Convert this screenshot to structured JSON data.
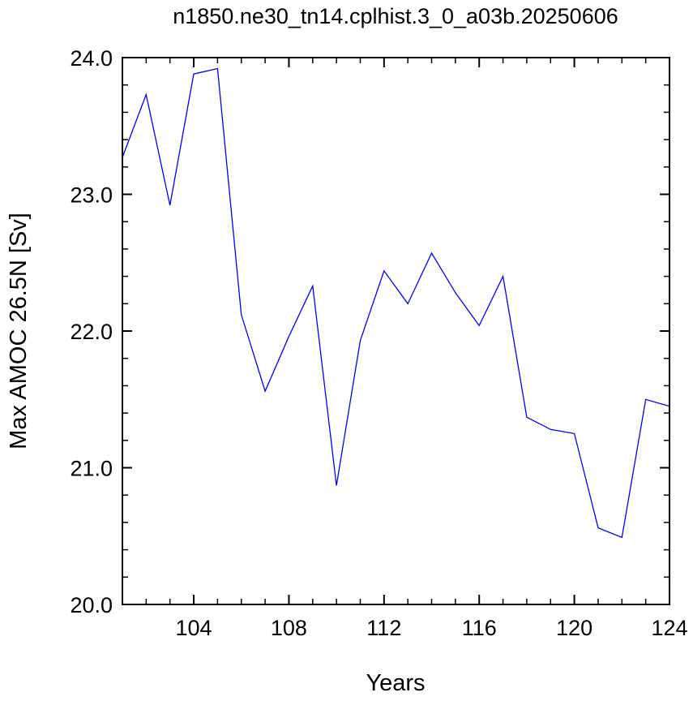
{
  "chart_data": {
    "type": "line",
    "title": "n1850.ne30_tn14.cplhist.3_0_a03b.20250606",
    "xlabel": "Years",
    "ylabel": "Max AMOC 26.5N [Sv]",
    "xlim": [
      101,
      124
    ],
    "ylim": [
      20.0,
      24.0
    ],
    "x_ticks": [
      104,
      108,
      112,
      116,
      120,
      124
    ],
    "y_ticks": [
      20.0,
      21.0,
      22.0,
      23.0,
      24.0
    ],
    "x_tick_labels": [
      "104",
      "108",
      "112",
      "116",
      "120",
      "124"
    ],
    "y_tick_labels": [
      "20.0",
      "21.0",
      "22.0",
      "23.0",
      "24.0"
    ],
    "grid": false,
    "line_color": "#0000ff",
    "series": [
      {
        "x": [
          101,
          102,
          103,
          104,
          105,
          106,
          107,
          108,
          109,
          110,
          111,
          112,
          113,
          114,
          115,
          116,
          117,
          118,
          119,
          120,
          121,
          122,
          123,
          124
        ],
        "values": [
          23.27,
          23.73,
          22.92,
          23.88,
          23.92,
          22.12,
          21.56,
          21.96,
          22.33,
          20.87,
          21.93,
          22.44,
          22.2,
          22.57,
          22.28,
          22.04,
          22.4,
          21.37,
          21.28,
          21.25,
          20.56,
          20.49,
          21.5,
          21.45
        ]
      }
    ]
  }
}
